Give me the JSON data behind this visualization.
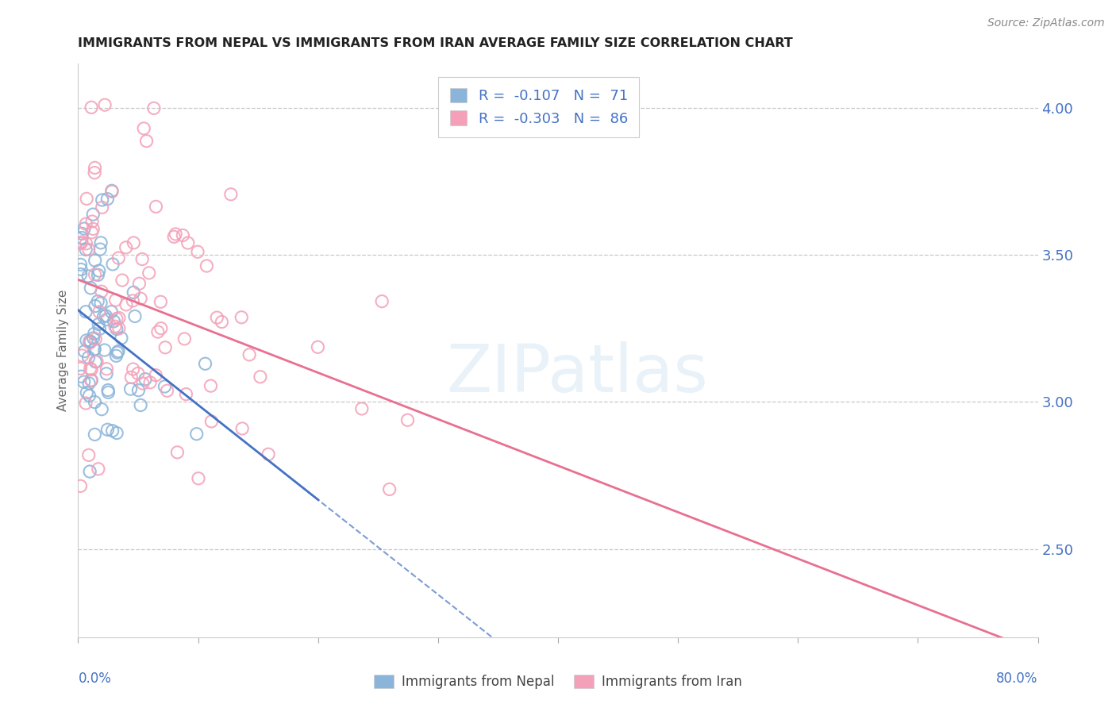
{
  "title": "IMMIGRANTS FROM NEPAL VS IMMIGRANTS FROM IRAN AVERAGE FAMILY SIZE CORRELATION CHART",
  "source_text": "Source: ZipAtlas.com",
  "ylabel": "Average Family Size",
  "watermark": "ZIPatlas",
  "yticks_right": [
    2.5,
    3.0,
    3.5,
    4.0
  ],
  "ytick_color": "#4472c4",
  "nepal_color": "#8ab4d9",
  "iran_color": "#f4a0b8",
  "nepal_line_color": "#4472c4",
  "iran_line_color": "#e87090",
  "nepal_R": -0.107,
  "nepal_N": 71,
  "iran_R": -0.303,
  "iran_N": 86,
  "nepal_label": "Immigrants from Nepal",
  "iran_label": "Immigrants from Iran",
  "xlim": [
    0.0,
    0.8
  ],
  "ylim": [
    2.2,
    4.15
  ],
  "grid_color": "#c8c8c8",
  "tick_color": "#4472c4",
  "legend_text_color": "#4472c4",
  "legend_R_color": "#000000",
  "background": "#ffffff"
}
